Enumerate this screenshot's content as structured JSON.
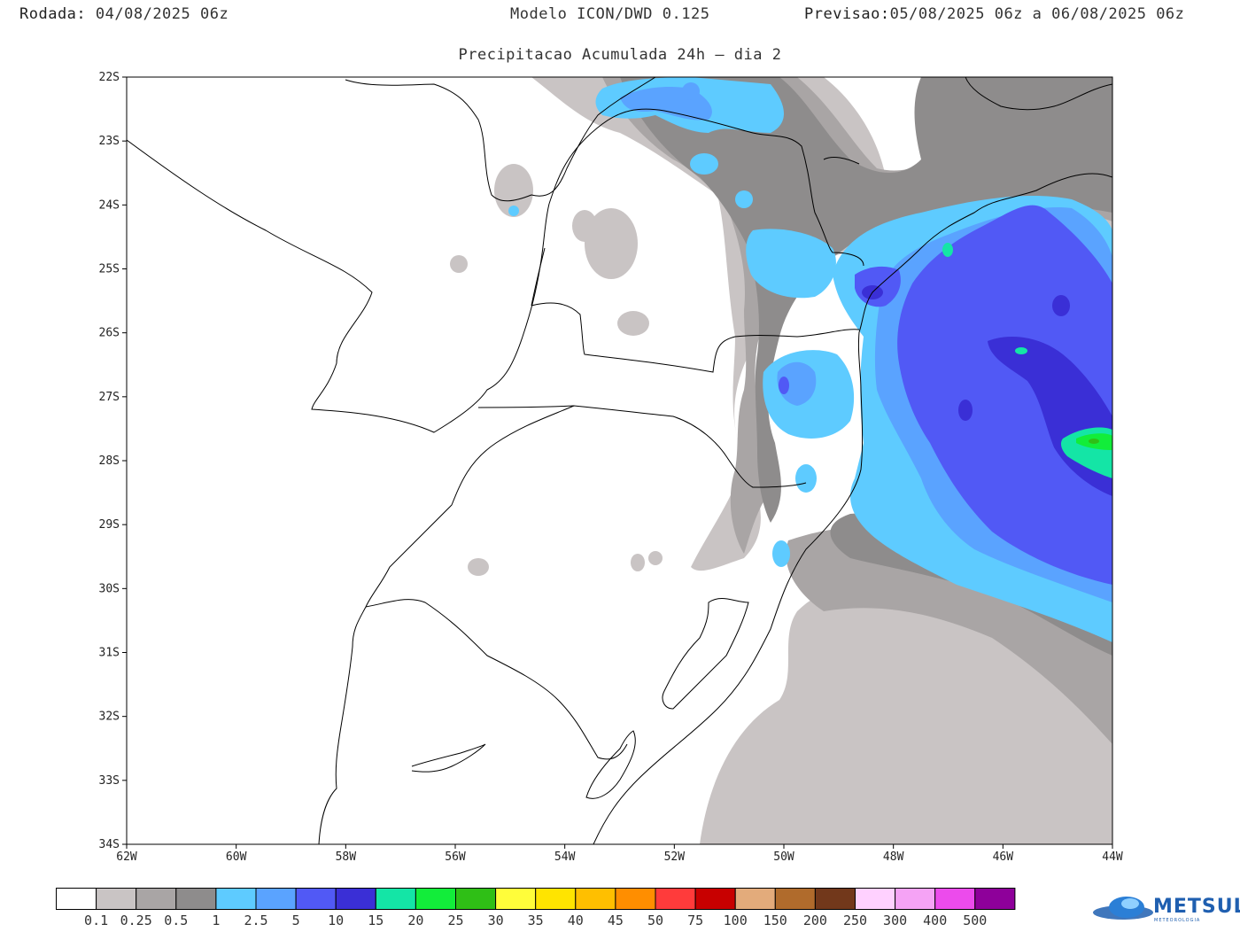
{
  "header": {
    "run_label": "Rodada:",
    "run_value": "04/08/2025 06z",
    "model": "Modelo ICON/DWD 0.125",
    "forecast_label": "Previsao:",
    "forecast_value": "05/08/2025 06z a 06/08/2025 06z"
  },
  "subtitle": "Precipitacao Acumulada 24h – dia 2",
  "map": {
    "lon_ticks": [
      "62W",
      "60W",
      "58W",
      "56W",
      "54W",
      "52W",
      "50W",
      "48W",
      "46W",
      "44W"
    ],
    "lat_ticks": [
      "22S",
      "23S",
      "24S",
      "25S",
      "26S",
      "27S",
      "28S",
      "29S",
      "30S",
      "31S",
      "32S",
      "33S",
      "34S"
    ]
  },
  "legend": {
    "colors": [
      "#ffffff",
      "#c9c4c4",
      "#a9a5a5",
      "#8e8c8c",
      "#5ecbff",
      "#5aa3ff",
      "#5159f5",
      "#3a2fd6",
      "#14e5a6",
      "#12ed3a",
      "#2fbf16",
      "#fffd3a",
      "#ffe400",
      "#ffbf00",
      "#ff8e00",
      "#ff3b3b",
      "#c80000",
      "#e3ab7b",
      "#b06b2c",
      "#72381b",
      "#ffd1ff",
      "#f5a3f5",
      "#ec4bec",
      "#8e009a"
    ],
    "labels": [
      "0.1",
      "0.25",
      "0.5",
      "1",
      "2.5",
      "5",
      "10",
      "15",
      "20",
      "25",
      "30",
      "35",
      "40",
      "45",
      "50",
      "75",
      "100",
      "150",
      "200",
      "250",
      "300",
      "400",
      "500"
    ]
  },
  "logo": {
    "name": "METSUL",
    "sub": "METEOROLOGIA"
  }
}
